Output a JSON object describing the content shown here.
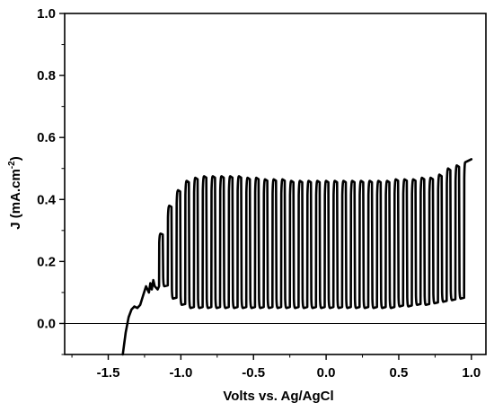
{
  "chart_data": {
    "type": "line",
    "title": "",
    "xlabel": "Volts vs. Ag/AgCl",
    "ylabel_main": "J (mA.cm",
    "ylabel_sup": "-2",
    "ylabel_close": ")",
    "xlim": [
      -1.8,
      1.1
    ],
    "ylim": [
      -0.1,
      1.0
    ],
    "xticks": [
      -1.5,
      -1.0,
      -0.5,
      0.0,
      0.5,
      1.0
    ],
    "xtick_labels": [
      "-1.5",
      "-1.0",
      "-0.5",
      "0.0",
      "0.5",
      "1.0"
    ],
    "yticks": [
      0.0,
      0.2,
      0.4,
      0.6,
      0.8,
      1.0
    ],
    "ytick_labels": [
      "0.0",
      "0.2",
      "0.4",
      "0.6",
      "0.8",
      "1.0"
    ],
    "grid": false,
    "zero_line": 0.0,
    "colors": {
      "line": "#000000",
      "axis": "#000000"
    },
    "series": [
      {
        "description_free": true,
        "onset_x": [
          -1.4,
          -1.38,
          -1.36,
          -1.34,
          -1.32,
          -1.3,
          -1.28,
          -1.26,
          -1.24,
          -1.22,
          -1.21,
          -1.2,
          -1.19,
          -1.18,
          -1.16,
          -1.15
        ],
        "onset_y": [
          -0.1,
          -0.03,
          0.02,
          0.045,
          0.055,
          0.05,
          0.06,
          0.09,
          0.12,
          0.1,
          0.13,
          0.11,
          0.14,
          0.12,
          0.11,
          0.12
        ],
        "pulse_start_x": [
          -1.15,
          -1.09,
          -1.03,
          -0.97,
          -0.91,
          -0.85,
          -0.79,
          -0.73,
          -0.67,
          -0.61,
          -0.55,
          -0.49,
          -0.43,
          -0.37,
          -0.31,
          -0.25,
          -0.19,
          -0.13,
          -0.07,
          -0.01,
          0.05,
          0.11,
          0.17,
          0.23,
          0.29,
          0.35,
          0.41,
          0.47,
          0.53,
          0.59,
          0.65,
          0.71,
          0.77,
          0.83,
          0.89,
          0.95
        ],
        "pulse_peak_y": [
          0.29,
          0.38,
          0.43,
          0.46,
          0.47,
          0.475,
          0.475,
          0.475,
          0.475,
          0.475,
          0.47,
          0.47,
          0.465,
          0.465,
          0.465,
          0.46,
          0.46,
          0.46,
          0.46,
          0.46,
          0.46,
          0.46,
          0.46,
          0.46,
          0.46,
          0.46,
          0.46,
          0.465,
          0.465,
          0.465,
          0.47,
          0.47,
          0.48,
          0.5,
          0.51,
          0.52
        ],
        "pulse_base_y": [
          0.12,
          0.08,
          0.06,
          0.05,
          0.05,
          0.05,
          0.05,
          0.05,
          0.05,
          0.05,
          0.05,
          0.05,
          0.05,
          0.05,
          0.05,
          0.05,
          0.05,
          0.05,
          0.05,
          0.05,
          0.05,
          0.05,
          0.05,
          0.05,
          0.05,
          0.05,
          0.05,
          0.055,
          0.055,
          0.06,
          0.06,
          0.065,
          0.07,
          0.075,
          0.08,
          0.085
        ],
        "end_x": 1.0,
        "end_y": 0.53
      }
    ]
  }
}
